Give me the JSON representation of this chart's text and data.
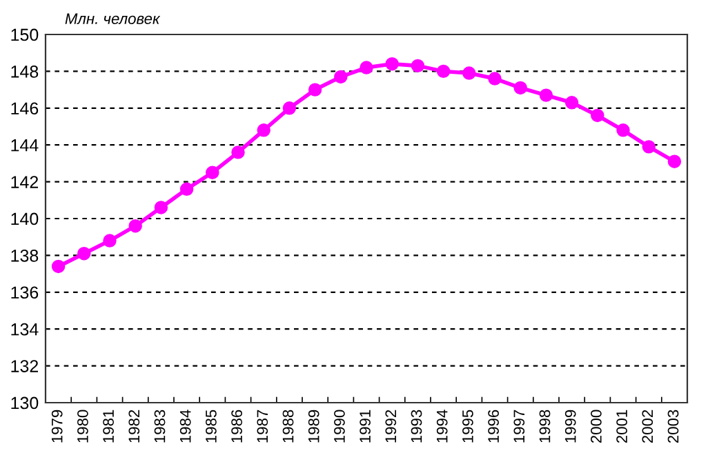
{
  "chart_data": {
    "type": "line",
    "ylabel": "Млн. человек",
    "categories": [
      "1979",
      "1980",
      "1981",
      "1982",
      "1983",
      "1984",
      "1985",
      "1986",
      "1987",
      "1988",
      "1989",
      "1990",
      "1991",
      "1992",
      "1993",
      "1994",
      "1995",
      "1996",
      "1997",
      "1998",
      "1999",
      "2000",
      "2001",
      "2002",
      "2003"
    ],
    "series": [
      {
        "color": "#ff00ff",
        "values": [
          137.4,
          138.1,
          138.8,
          139.6,
          140.6,
          141.6,
          142.5,
          143.6,
          144.8,
          146.0,
          147.0,
          147.7,
          148.2,
          148.4,
          148.3,
          148.0,
          147.9,
          147.6,
          147.1,
          146.7,
          146.3,
          145.6,
          144.8,
          143.9,
          143.1
        ]
      }
    ],
    "ylim": [
      130,
      150
    ],
    "yticks": [
      130,
      132,
      134,
      136,
      138,
      140,
      142,
      144,
      146,
      148,
      150
    ],
    "grid": "y",
    "marker": "circle",
    "line_style": "solid",
    "legend": false
  }
}
